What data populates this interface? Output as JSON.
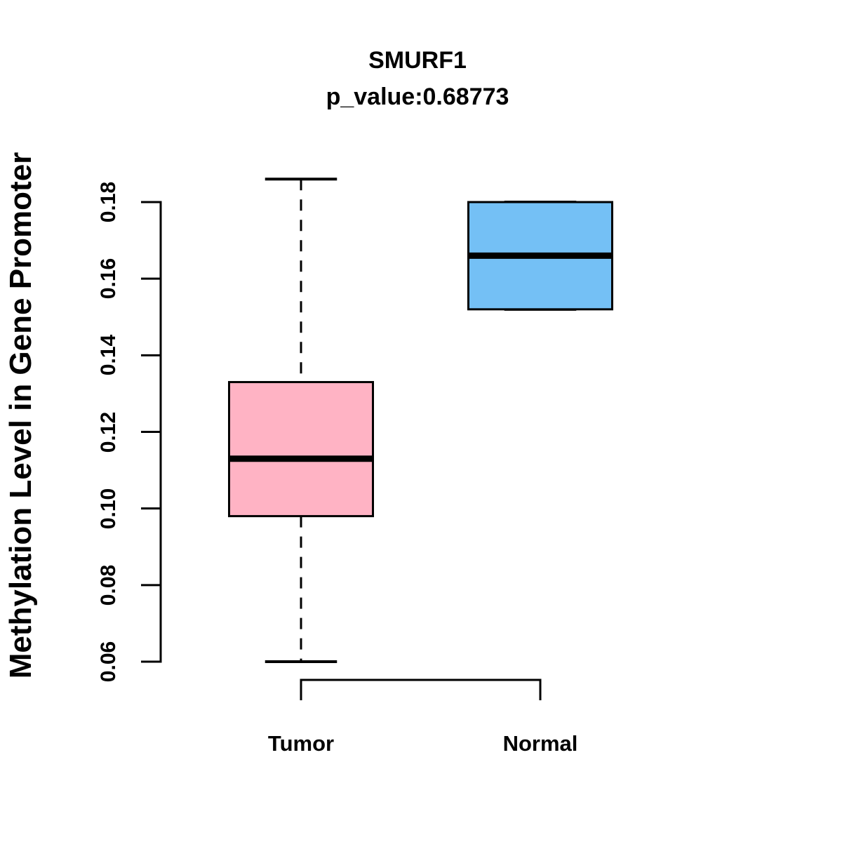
{
  "chart_data": {
    "type": "boxplot",
    "title": "SMURF1",
    "subtitle": "p_value:0.68773",
    "ylabel": "Methylation Level in Gene Promoter",
    "ylim": [
      0.06,
      0.18
    ],
    "yticks": [
      0.06,
      0.08,
      0.1,
      0.12,
      0.14,
      0.16,
      0.18
    ],
    "ytick_labels": [
      "0.06",
      "0.08",
      "0.10",
      "0.12",
      "0.14",
      "0.16",
      "0.18"
    ],
    "x_categories": [
      "Tumor",
      "Normal"
    ],
    "legend": "none",
    "grid": false,
    "groups": [
      {
        "label": "Tumor",
        "fill": "#FFB3C4",
        "whisker_low": 0.06,
        "q1": 0.098,
        "median": 0.113,
        "q3": 0.133,
        "whisker_high": 0.186
      },
      {
        "label": "Normal",
        "fill": "#74C0F5",
        "whisker_low": 0.152,
        "q1": 0.152,
        "median": 0.166,
        "q3": 0.18,
        "whisker_high": 0.18
      }
    ],
    "colors": {
      "stroke": "#000000",
      "background": "#FFFFFF",
      "tumor_fill": "#FFB3C4",
      "normal_fill": "#74C0F5"
    }
  }
}
